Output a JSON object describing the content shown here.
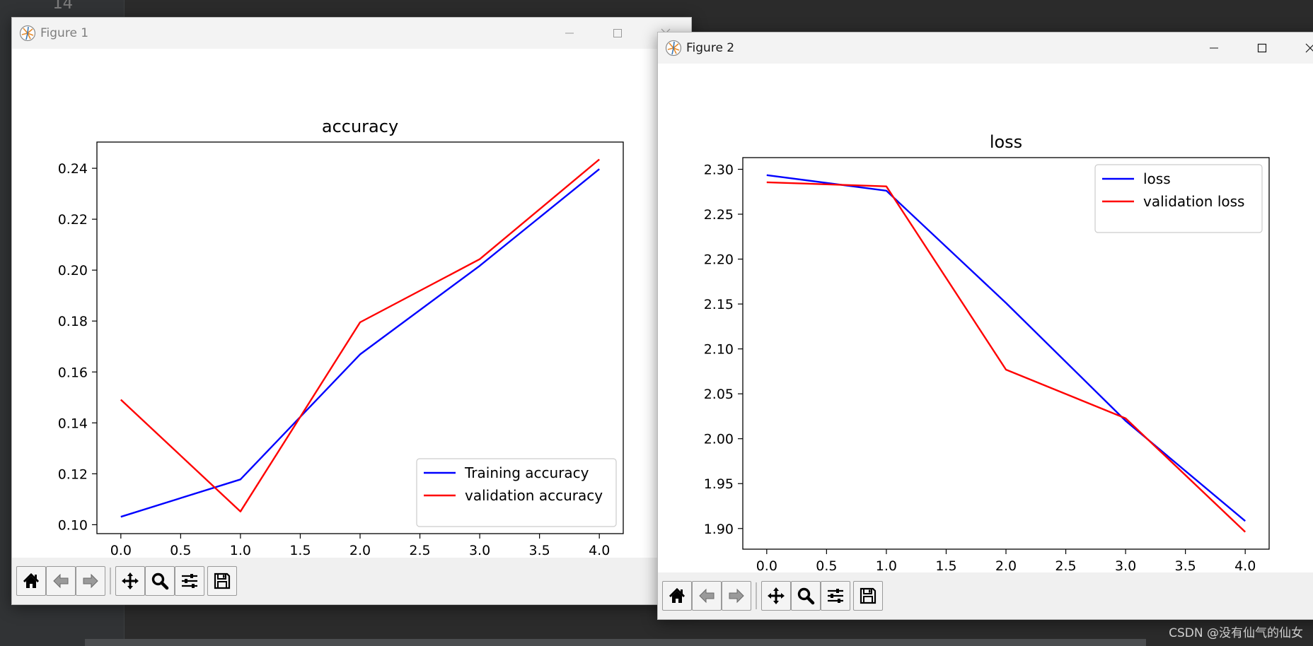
{
  "ide": {
    "line_number": "14"
  },
  "watermark": "CSDN @没有仙气的仙女",
  "figures": [
    {
      "window_title": "Figure 1",
      "chart_data": {
        "type": "line",
        "title": "accuracy",
        "xlabel": "",
        "ylabel": "",
        "xlim": [
          -0.2,
          4.2
        ],
        "ylim": [
          0.0965,
          0.2503
        ],
        "xticks": [
          0.0,
          0.5,
          1.0,
          1.5,
          2.0,
          2.5,
          3.0,
          3.5,
          4.0
        ],
        "xtick_labels": [
          "0.0",
          "0.5",
          "1.0",
          "1.5",
          "2.0",
          "2.5",
          "3.0",
          "3.5",
          "4.0"
        ],
        "yticks": [
          0.1,
          0.12,
          0.14,
          0.16,
          0.18,
          0.2,
          0.22,
          0.24
        ],
        "ytick_labels": [
          "0.10",
          "0.12",
          "0.14",
          "0.16",
          "0.18",
          "0.20",
          "0.22",
          "0.24"
        ],
        "legend_position": "lower right",
        "series": [
          {
            "name": "Training accuracy",
            "color": "#0000ff",
            "x": [
              0,
              1,
              2,
              3,
              4
            ],
            "y": [
              0.1031,
              0.1178,
              0.1669,
              0.2017,
              0.2397
            ]
          },
          {
            "name": "validation accuracy",
            "color": "#ff0000",
            "x": [
              0,
              1,
              2,
              3,
              4
            ],
            "y": [
              0.1491,
              0.1052,
              0.1795,
              0.2043,
              0.2435
            ]
          }
        ]
      }
    },
    {
      "window_title": "Figure 2",
      "chart_data": {
        "type": "line",
        "title": "loss",
        "xlabel": "",
        "ylabel": "",
        "xlim": [
          -0.2,
          4.2
        ],
        "ylim": [
          1.877,
          2.313
        ],
        "xticks": [
          0.0,
          0.5,
          1.0,
          1.5,
          2.0,
          2.5,
          3.0,
          3.5,
          4.0
        ],
        "xtick_labels": [
          "0.0",
          "0.5",
          "1.0",
          "1.5",
          "2.0",
          "2.5",
          "3.0",
          "3.5",
          "4.0"
        ],
        "yticks": [
          1.9,
          1.95,
          2.0,
          2.05,
          2.1,
          2.15,
          2.2,
          2.25,
          2.3
        ],
        "ytick_labels": [
          "1.90",
          "1.95",
          "2.00",
          "2.05",
          "2.10",
          "2.15",
          "2.20",
          "2.25",
          "2.30"
        ],
        "legend_position": "upper right",
        "series": [
          {
            "name": "loss",
            "color": "#0000ff",
            "x": [
              0,
              1,
              2,
              3,
              4
            ],
            "y": [
              2.2935,
              2.2762,
              2.1512,
              2.0199,
              1.9083
            ]
          },
          {
            "name": "validation loss",
            "color": "#ff0000",
            "x": [
              0,
              1,
              2,
              3,
              4
            ],
            "y": [
              2.2855,
              2.281,
              2.0769,
              2.0227,
              1.8962
            ]
          }
        ]
      }
    }
  ],
  "toolbar": [
    {
      "id": "home",
      "icon": "home-icon",
      "tooltip": "Reset original view"
    },
    {
      "id": "back",
      "icon": "back-arrow-icon",
      "tooltip": "Back to previous view"
    },
    {
      "id": "forward",
      "icon": "forward-arrow-icon",
      "tooltip": "Forward to next view"
    },
    {
      "id": "pan",
      "icon": "pan-icon",
      "tooltip": "Pan axes"
    },
    {
      "id": "zoom",
      "icon": "zoom-icon",
      "tooltip": "Zoom to rectangle"
    },
    {
      "id": "subplots",
      "icon": "subplots-icon",
      "tooltip": "Configure subplots"
    },
    {
      "id": "save",
      "icon": "save-icon",
      "tooltip": "Save the figure"
    }
  ]
}
